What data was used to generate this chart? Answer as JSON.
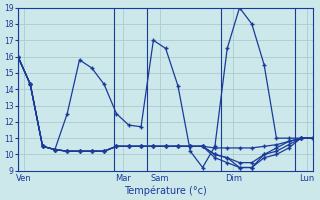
{
  "xlabel": "Température (°c)",
  "background_color": "#cce8ea",
  "grid_color": "#aacccc",
  "line_color": "#1a3a9a",
  "ylim": [
    9,
    19
  ],
  "xlim": [
    0,
    24
  ],
  "yticks": [
    9,
    10,
    11,
    12,
    13,
    14,
    15,
    16,
    17,
    18,
    19
  ],
  "day_labels": [
    "Ven",
    "Mar",
    "Sam",
    "Dim",
    "Lun"
  ],
  "day_x_positions": [
    0.5,
    8.5,
    11.5,
    17.5,
    23.5
  ],
  "day_vline_positions": [
    0,
    7.8,
    10.5,
    16.5,
    22.5
  ],
  "series": [
    {
      "x": [
        0,
        1,
        2,
        3,
        4,
        5,
        6,
        7,
        8,
        9,
        10,
        11,
        12,
        13,
        14,
        15,
        16,
        17,
        18,
        19,
        20,
        21,
        22,
        23,
        24
      ],
      "y": [
        16,
        14.3,
        10.5,
        10.3,
        10.2,
        10.2,
        10.2,
        10.2,
        10.5,
        10.5,
        10.5,
        10.5,
        10.5,
        10.5,
        10.5,
        10.5,
        10.4,
        10.4,
        10.4,
        10.4,
        10.5,
        10.6,
        10.8,
        11.0,
        11.0
      ]
    },
    {
      "x": [
        0,
        1,
        2,
        3,
        4,
        5,
        6,
        7,
        8,
        9,
        10,
        11,
        12,
        13,
        14,
        15,
        16,
        17,
        18,
        19,
        20,
        21,
        22,
        23,
        24
      ],
      "y": [
        16,
        14.3,
        10.5,
        10.3,
        10.2,
        10.2,
        10.2,
        10.2,
        10.5,
        10.5,
        10.5,
        10.5,
        10.5,
        10.5,
        10.5,
        10.5,
        10.0,
        9.8,
        9.5,
        9.5,
        10.0,
        10.4,
        10.8,
        11.0,
        11.0
      ]
    },
    {
      "x": [
        0,
        1,
        2,
        3,
        4,
        5,
        6,
        7,
        8,
        9,
        10,
        11,
        12,
        13,
        14,
        15,
        16,
        17,
        18,
        19,
        20,
        21,
        22,
        23,
        24
      ],
      "y": [
        16,
        14.3,
        10.5,
        10.3,
        10.2,
        10.2,
        10.2,
        10.2,
        10.5,
        10.5,
        10.5,
        10.5,
        10.5,
        10.5,
        10.5,
        10.5,
        10.0,
        9.8,
        9.2,
        9.2,
        10.0,
        10.2,
        10.6,
        11.0,
        11.0
      ]
    },
    {
      "x": [
        0,
        1,
        2,
        3,
        4,
        5,
        6,
        7,
        8,
        9,
        10,
        11,
        12,
        13,
        14,
        15,
        16,
        17,
        18,
        19,
        20,
        21,
        22,
        23,
        24
      ],
      "y": [
        16,
        14.3,
        10.5,
        10.3,
        10.2,
        10.2,
        10.2,
        10.2,
        10.5,
        10.5,
        10.5,
        10.5,
        10.5,
        10.5,
        10.5,
        10.5,
        9.8,
        9.5,
        9.2,
        9.2,
        9.8,
        10.0,
        10.4,
        11.0,
        11.0
      ]
    },
    {
      "x": [
        0,
        1,
        2,
        3,
        4,
        5,
        6,
        7,
        8,
        9,
        10,
        11,
        12,
        13,
        14,
        15,
        16,
        17,
        18,
        19,
        20,
        21,
        22,
        23,
        24
      ],
      "y": [
        16,
        14.3,
        10.5,
        10.3,
        12.5,
        15.8,
        15.3,
        14.3,
        12.5,
        11.8,
        11.7,
        17.0,
        16.5,
        14.2,
        10.2,
        9.2,
        10.5,
        16.5,
        19.0,
        18.0,
        15.5,
        11.0,
        11.0,
        11.0,
        11.0
      ]
    }
  ]
}
